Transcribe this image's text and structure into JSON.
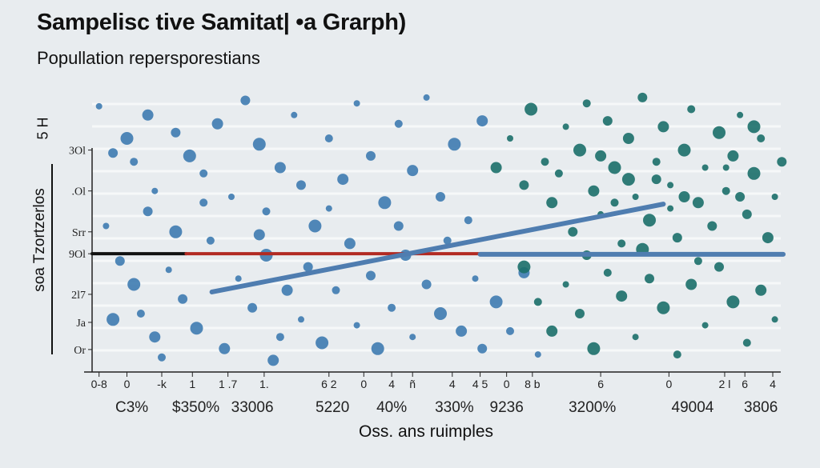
{
  "chart_data": {
    "type": "scatter",
    "title": "Sampelisc tive Samitat| •a Grarph)",
    "subtitle": "Popullation repersporestians",
    "ylabel": "soa Tzortzerlos",
    "yunit": "5 H",
    "xlabel": "Oss. ans ruimples",
    "xlim": [
      0,
      100
    ],
    "ylim": [
      0,
      100
    ],
    "y_ticks": [
      {
        "label": "3Ol",
        "value": 76
      },
      {
        "label": ".Ol",
        "value": 62
      },
      {
        "label": "Srr",
        "value": 48
      },
      {
        "label": "9Ol",
        "value": 40.5
      },
      {
        "label": "2l7",
        "value": 26.6
      },
      {
        "label": "Ja",
        "value": 17
      },
      {
        "label": "Or",
        "value": 7.7
      }
    ],
    "x_ticks": [
      {
        "label": "0-8",
        "value": 1
      },
      {
        "label": "0",
        "value": 5
      },
      {
        "label": "-k",
        "value": 10
      },
      {
        "label": "1",
        "value": 14.4
      },
      {
        "label": "1 .7",
        "value": 19.5
      },
      {
        "label": "1.",
        "value": 24.7
      },
      {
        "label": "6 2",
        "value": 34
      },
      {
        "label": "0",
        "value": 39
      },
      {
        "label": "4",
        "value": 43
      },
      {
        "label": "ñ",
        "value": 46
      },
      {
        "label": "4",
        "value": 51.7
      },
      {
        "label": "4 5",
        "value": 55.7
      },
      {
        "label": "0",
        "value": 59.5
      },
      {
        "label": "8 b",
        "value": 63.2
      },
      {
        "label": "6",
        "value": 73
      },
      {
        "label": "0",
        "value": 82.8
      },
      {
        "label": "2 l",
        "value": 90.8
      },
      {
        "label": "6",
        "value": 93.7
      },
      {
        "label": "4",
        "value": 97.7
      }
    ],
    "x_secondary_labels": [
      {
        "label": "C3%",
        "value": 5.7
      },
      {
        "label": "$350%",
        "value": 14.9
      },
      {
        "label": "33006",
        "value": 23
      },
      {
        "label": "5220",
        "value": 34.5
      },
      {
        "label": "40%",
        "value": 43
      },
      {
        "label": "330%",
        "value": 52
      },
      {
        "label": "9236",
        "value": 59.5
      },
      {
        "label": "3200%",
        "value": 71.8
      },
      {
        "label": "49004",
        "value": 86.2
      },
      {
        "label": "3806",
        "value": 96
      }
    ],
    "lines": [
      {
        "name": "baseline-black",
        "color": "#111111",
        "points": [
          [
            0,
            40.5
          ],
          [
            13.5,
            40.5
          ]
        ]
      },
      {
        "name": "baseline-red",
        "color": "#b22a22",
        "points": [
          [
            13.5,
            40.5
          ],
          [
            57,
            40.5
          ]
        ]
      },
      {
        "name": "trend",
        "color": "#4f7db0",
        "points": [
          [
            17.2,
            27.4
          ],
          [
            82,
            57.5
          ]
        ]
      },
      {
        "name": "plateau",
        "color": "#4f7db0",
        "points": [
          [
            55.7,
            40.3
          ],
          [
            99.2,
            40.3
          ]
        ]
      }
    ],
    "series": [
      {
        "name": "group-a",
        "color": "#3e7bb0",
        "points": [
          [
            1,
            91
          ],
          [
            3,
            75
          ],
          [
            5,
            80
          ],
          [
            6,
            72
          ],
          [
            8,
            88
          ],
          [
            9,
            62
          ],
          [
            12,
            82
          ],
          [
            14,
            74
          ],
          [
            16,
            68
          ],
          [
            18,
            85
          ],
          [
            20,
            60
          ],
          [
            22,
            93
          ],
          [
            24,
            78
          ],
          [
            25,
            55
          ],
          [
            27,
            70
          ],
          [
            29,
            88
          ],
          [
            30,
            64
          ],
          [
            32,
            50
          ],
          [
            34,
            80
          ],
          [
            36,
            66
          ],
          [
            38,
            92
          ],
          [
            40,
            74
          ],
          [
            42,
            58
          ],
          [
            44,
            85
          ],
          [
            46,
            69
          ],
          [
            48,
            94
          ],
          [
            50,
            60
          ],
          [
            52,
            78
          ],
          [
            54,
            52
          ],
          [
            56,
            86
          ],
          [
            2,
            50
          ],
          [
            4,
            38
          ],
          [
            6,
            30
          ],
          [
            7,
            20
          ],
          [
            9,
            12
          ],
          [
            11,
            35
          ],
          [
            13,
            25
          ],
          [
            15,
            15
          ],
          [
            17,
            45
          ],
          [
            19,
            8
          ],
          [
            21,
            32
          ],
          [
            23,
            22
          ],
          [
            25,
            40
          ],
          [
            27,
            12
          ],
          [
            28,
            28
          ],
          [
            30,
            18
          ],
          [
            31,
            36
          ],
          [
            33,
            10
          ],
          [
            35,
            28
          ],
          [
            37,
            44
          ],
          [
            38,
            16
          ],
          [
            40,
            33
          ],
          [
            41,
            8
          ],
          [
            43,
            22
          ],
          [
            45,
            40
          ],
          [
            46,
            12
          ],
          [
            48,
            30
          ],
          [
            50,
            20
          ],
          [
            51,
            45
          ],
          [
            53,
            14
          ],
          [
            55,
            32
          ],
          [
            56,
            8
          ],
          [
            58,
            24
          ],
          [
            60,
            14
          ],
          [
            62,
            34
          ],
          [
            64,
            6
          ],
          [
            8,
            55
          ],
          [
            12,
            48
          ],
          [
            16,
            58
          ],
          [
            24,
            47
          ],
          [
            34,
            56
          ],
          [
            44,
            50
          ],
          [
            3,
            18
          ],
          [
            10,
            5
          ],
          [
            26,
            4
          ]
        ]
      },
      {
        "name": "group-b",
        "color": "#1b6f69",
        "points": [
          [
            58,
            70
          ],
          [
            60,
            80
          ],
          [
            62,
            64
          ],
          [
            63,
            90
          ],
          [
            65,
            72
          ],
          [
            66,
            58
          ],
          [
            68,
            84
          ],
          [
            69,
            48
          ],
          [
            70,
            76
          ],
          [
            71,
            92
          ],
          [
            72,
            62
          ],
          [
            73,
            54
          ],
          [
            74,
            86
          ],
          [
            75,
            70
          ],
          [
            76,
            44
          ],
          [
            77,
            80
          ],
          [
            78,
            60
          ],
          [
            79,
            94
          ],
          [
            80,
            52
          ],
          [
            81,
            72
          ],
          [
            82,
            84
          ],
          [
            83,
            64
          ],
          [
            84,
            46
          ],
          [
            85,
            76
          ],
          [
            86,
            90
          ],
          [
            87,
            58
          ],
          [
            88,
            70
          ],
          [
            89,
            50
          ],
          [
            90,
            82
          ],
          [
            91,
            62
          ],
          [
            92,
            74
          ],
          [
            93,
            88
          ],
          [
            94,
            54
          ],
          [
            95,
            68
          ],
          [
            96,
            80
          ],
          [
            97,
            46
          ],
          [
            98,
            60
          ],
          [
            99,
            72
          ],
          [
            62,
            36
          ],
          [
            64,
            24
          ],
          [
            66,
            14
          ],
          [
            68,
            30
          ],
          [
            70,
            20
          ],
          [
            72,
            8
          ],
          [
            74,
            34
          ],
          [
            76,
            26
          ],
          [
            78,
            12
          ],
          [
            80,
            32
          ],
          [
            82,
            22
          ],
          [
            84,
            6
          ],
          [
            86,
            30
          ],
          [
            88,
            16
          ],
          [
            90,
            36
          ],
          [
            92,
            24
          ],
          [
            94,
            10
          ],
          [
            96,
            28
          ],
          [
            98,
            18
          ],
          [
            71,
            40
          ],
          [
            79,
            42
          ],
          [
            87,
            38
          ],
          [
            85,
            60
          ],
          [
            83,
            56
          ],
          [
            81,
            66
          ],
          [
            77,
            66
          ],
          [
            75,
            58
          ],
          [
            73,
            74
          ],
          [
            91,
            70
          ],
          [
            93,
            60
          ],
          [
            95,
            84
          ],
          [
            67,
            68
          ]
        ]
      }
    ]
  }
}
